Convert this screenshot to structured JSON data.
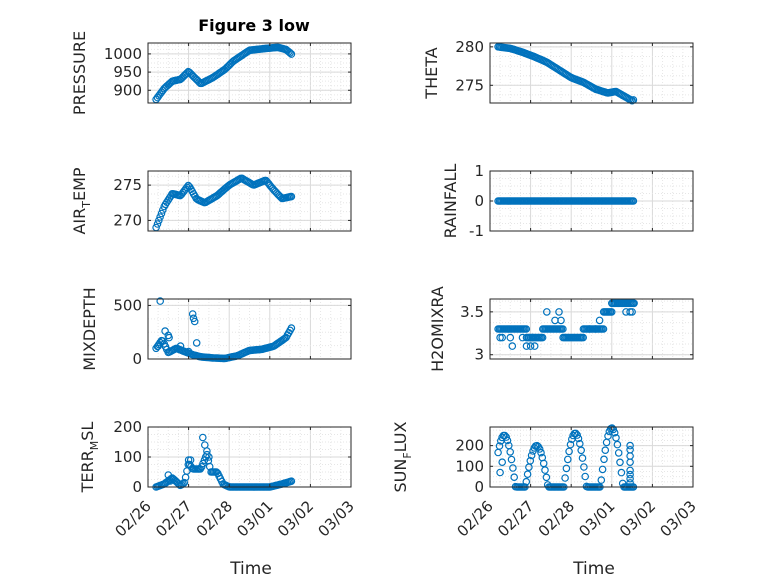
{
  "figure": {
    "title": "Figure 3 low",
    "xlabel": "Time"
  },
  "chart_data": [
    {
      "type": "scatter",
      "title": "Figure 3 low",
      "ylabel": "PRESSURE",
      "ylim": [
        865,
        1030
      ],
      "yticks": [
        {
          "v": 900,
          "label": "900"
        },
        {
          "v": 950,
          "label": "950"
        },
        {
          "v": 1000,
          "label": "1000"
        }
      ],
      "xticks": [
        "02/26",
        "02/27",
        "02/28",
        "03/01",
        "03/02",
        "03/03"
      ],
      "xlim": [
        0,
        5
      ],
      "keys": [
        [
          0.2,
          875
        ],
        [
          0.4,
          905
        ],
        [
          0.6,
          925
        ],
        [
          0.8,
          930
        ],
        [
          1.0,
          952
        ],
        [
          1.1,
          940
        ],
        [
          1.3,
          918
        ],
        [
          1.6,
          935
        ],
        [
          1.9,
          958
        ],
        [
          2.1,
          980
        ],
        [
          2.5,
          1010
        ],
        [
          2.9,
          1015
        ],
        [
          3.2,
          1018
        ],
        [
          3.4,
          1012
        ],
        [
          3.55,
          998
        ]
      ],
      "marker": "o",
      "color": "#0072BD"
    },
    {
      "type": "scatter",
      "ylabel": "THETA",
      "ylim": [
        272.7,
        280.5
      ],
      "yticks": [
        {
          "v": 275,
          "label": "275"
        },
        {
          "v": 280,
          "label": "280"
        }
      ],
      "xticks": [
        "02/26",
        "02/27",
        "02/28",
        "03/01",
        "03/02",
        "03/03"
      ],
      "xlim": [
        0,
        5
      ],
      "keys": [
        [
          0.2,
          280
        ],
        [
          0.5,
          279.8
        ],
        [
          0.8,
          279.3
        ],
        [
          1.1,
          278.7
        ],
        [
          1.4,
          278
        ],
        [
          1.7,
          277
        ],
        [
          2.0,
          276
        ],
        [
          2.3,
          275.4
        ],
        [
          2.6,
          274.5
        ],
        [
          2.9,
          274
        ],
        [
          3.1,
          274.2
        ],
        [
          3.3,
          273.6
        ],
        [
          3.5,
          273
        ],
        [
          3.6,
          273.3
        ]
      ],
      "marker": "o",
      "color": "#0072BD"
    },
    {
      "type": "scatter",
      "ylabel_main": "AIR",
      "ylabel_sub": "T",
      "ylabel_rest": "EMP",
      "ylim": [
        268.5,
        277
      ],
      "yticks": [
        {
          "v": 270,
          "label": "270"
        },
        {
          "v": 275,
          "label": "275"
        }
      ],
      "xticks": [
        "02/26",
        "02/27",
        "02/28",
        "03/01",
        "03/02",
        "03/03"
      ],
      "xlim": [
        0,
        5
      ],
      "keys": [
        [
          0.2,
          269
        ],
        [
          0.4,
          272
        ],
        [
          0.6,
          273.8
        ],
        [
          0.8,
          273.5
        ],
        [
          1.0,
          275
        ],
        [
          1.2,
          273
        ],
        [
          1.4,
          272.5
        ],
        [
          1.7,
          273.5
        ],
        [
          2.0,
          275
        ],
        [
          2.3,
          276
        ],
        [
          2.6,
          275
        ],
        [
          2.9,
          275.7
        ],
        [
          3.1,
          274.3
        ],
        [
          3.3,
          273.1
        ],
        [
          3.55,
          273.4
        ]
      ],
      "marker": "o",
      "color": "#0072BD"
    },
    {
      "type": "scatter",
      "ylabel": "RAINFALL",
      "ylim": [
        -1,
        1
      ],
      "yticks": [
        {
          "v": -1,
          "label": "-1"
        },
        {
          "v": 0,
          "label": "0"
        },
        {
          "v": 1,
          "label": "1"
        }
      ],
      "xticks": [
        "02/26",
        "02/27",
        "02/28",
        "03/01",
        "03/02",
        "03/03"
      ],
      "xlim": [
        0,
        5
      ],
      "keys": [
        [
          0.2,
          0
        ],
        [
          3.55,
          0
        ]
      ],
      "marker": "o",
      "color": "#0072BD"
    },
    {
      "type": "scatter",
      "ylabel": "MIXDEPTH",
      "ylim": [
        0,
        560
      ],
      "yticks": [
        {
          "v": 0,
          "label": "0"
        },
        {
          "v": 500,
          "label": "500"
        }
      ],
      "xticks": [
        "02/26",
        "02/27",
        "02/28",
        "03/01",
        "03/02",
        "03/03"
      ],
      "xlim": [
        0,
        5
      ],
      "keys": [
        [
          0.2,
          100
        ],
        [
          0.35,
          180
        ],
        [
          0.5,
          60
        ],
        [
          0.7,
          100
        ],
        [
          0.9,
          70
        ],
        [
          1.1,
          40
        ],
        [
          1.3,
          20
        ],
        [
          1.6,
          10
        ],
        [
          1.9,
          5
        ],
        [
          2.2,
          30
        ],
        [
          2.5,
          80
        ],
        [
          2.8,
          90
        ],
        [
          3.1,
          120
        ],
        [
          3.4,
          200
        ],
        [
          3.55,
          300
        ]
      ],
      "extra": [
        [
          0.3,
          540
        ],
        [
          0.42,
          260
        ],
        [
          0.5,
          220
        ],
        [
          0.52,
          200
        ],
        [
          1.1,
          420
        ],
        [
          1.12,
          380
        ],
        [
          1.15,
          350
        ],
        [
          1.2,
          150
        ],
        [
          0.8,
          120
        ],
        [
          1.0,
          70
        ],
        [
          0.25,
          120
        ]
      ],
      "marker": "o",
      "color": "#0072BD"
    },
    {
      "type": "scatter",
      "ylabel": "H2OMIXRA",
      "ylim": [
        2.95,
        3.65
      ],
      "yticks": [
        {
          "v": 3,
          "label": "3"
        },
        {
          "v": 3.5,
          "label": "3.5"
        }
      ],
      "xticks": [
        "02/26",
        "02/27",
        "02/28",
        "03/01",
        "03/02",
        "03/03"
      ],
      "xlim": [
        0,
        5
      ],
      "levels": [
        [
          0.2,
          0.9,
          3.3
        ],
        [
          0.9,
          1.3,
          3.2
        ],
        [
          1.3,
          1.8,
          3.3
        ],
        [
          1.8,
          2.3,
          3.2
        ],
        [
          2.3,
          2.8,
          3.3
        ],
        [
          2.8,
          3.0,
          3.5
        ],
        [
          3.0,
          3.55,
          3.6
        ]
      ],
      "extra": [
        [
          0.25,
          3.2
        ],
        [
          0.3,
          3.2
        ],
        [
          0.5,
          3.2
        ],
        [
          0.55,
          3.1
        ],
        [
          0.8,
          3.2
        ],
        [
          0.9,
          3.1
        ],
        [
          1.0,
          3.1
        ],
        [
          1.05,
          3.2
        ],
        [
          1.1,
          3.1
        ],
        [
          1.4,
          3.5
        ],
        [
          1.6,
          3.4
        ],
        [
          1.7,
          3.5
        ],
        [
          1.75,
          3.4
        ],
        [
          2.45,
          3.3
        ],
        [
          2.6,
          3.3
        ],
        [
          2.7,
          3.4
        ],
        [
          3.35,
          3.5
        ],
        [
          3.45,
          3.5
        ],
        [
          3.5,
          3.5
        ],
        [
          3.55,
          3.6
        ]
      ],
      "marker": "o",
      "color": "#0072BD"
    },
    {
      "type": "scatter",
      "ylabel_main": "TERR",
      "ylabel_sub": "M",
      "ylabel_rest": "SL",
      "ylim": [
        0,
        200
      ],
      "yticks": [
        {
          "v": 0,
          "label": "0"
        },
        {
          "v": 100,
          "label": "100"
        },
        {
          "v": 200,
          "label": "200"
        }
      ],
      "xticks": [
        "02/26",
        "02/27",
        "02/28",
        "03/01",
        "03/02",
        "03/03"
      ],
      "xlim": [
        0,
        5
      ],
      "keys": [
        [
          0.2,
          0
        ],
        [
          0.4,
          10
        ],
        [
          0.6,
          30
        ],
        [
          0.8,
          5
        ],
        [
          0.9,
          15
        ],
        [
          1.0,
          80
        ],
        [
          1.1,
          60
        ],
        [
          1.3,
          60
        ],
        [
          1.45,
          110
        ],
        [
          1.55,
          50
        ],
        [
          1.7,
          50
        ],
        [
          1.85,
          10
        ],
        [
          2.0,
          0
        ],
        [
          2.5,
          0
        ],
        [
          3.0,
          0
        ],
        [
          3.3,
          10
        ],
        [
          3.55,
          20
        ]
      ],
      "extra": [
        [
          1.35,
          165
        ],
        [
          1.4,
          140
        ],
        [
          1.45,
          120
        ],
        [
          1.5,
          100
        ],
        [
          0.5,
          40
        ],
        [
          0.55,
          20
        ],
        [
          1.0,
          90
        ],
        [
          1.05,
          90
        ]
      ],
      "marker": "o",
      "color": "#0072BD"
    },
    {
      "type": "scatter",
      "ylabel_main": "SUN",
      "ylabel_sub": "F",
      "ylabel_rest": "LUX",
      "ylim": [
        0,
        290
      ],
      "yticks": [
        {
          "v": 0,
          "label": "0"
        },
        {
          "v": 100,
          "label": "100"
        },
        {
          "v": 200,
          "label": "200"
        }
      ],
      "xticks": [
        "02/26",
        "02/27",
        "02/28",
        "03/01",
        "03/02",
        "03/03"
      ],
      "xlim": [
        0,
        5
      ],
      "peaks": [
        [
          0.35,
          250
        ],
        [
          1.15,
          200
        ],
        [
          2.1,
          260
        ],
        [
          3.0,
          285
        ]
      ],
      "extra": [
        [
          3.45,
          200
        ],
        [
          3.45,
          180
        ],
        [
          3.45,
          150
        ],
        [
          3.45,
          120
        ],
        [
          3.45,
          80
        ],
        [
          3.45,
          60
        ],
        [
          3.45,
          40
        ],
        [
          3.45,
          20
        ],
        [
          0.25,
          70
        ],
        [
          0.3,
          120
        ]
      ],
      "marker": "o",
      "color": "#0072BD"
    }
  ]
}
